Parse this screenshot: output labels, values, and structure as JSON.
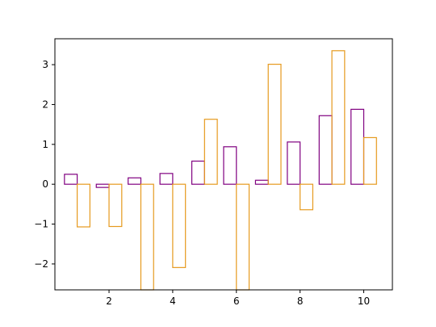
{
  "chart_data": {
    "type": "bar",
    "title": "",
    "xlabel": "",
    "ylabel": "",
    "xlim": [
      0.3,
      10.9
    ],
    "ylim": [
      -2.65,
      3.65
    ],
    "bar_style": "outline",
    "x": [
      1,
      2,
      3,
      4,
      5,
      6,
      7,
      8,
      9,
      10
    ],
    "series": [
      {
        "color": "#800080",
        "values": [
          0.25,
          -0.08,
          0.16,
          0.27,
          0.58,
          0.94,
          0.1,
          1.06,
          1.72,
          1.88
        ]
      },
      {
        "color": "#E69A1E",
        "values": [
          -1.07,
          -1.06,
          -2.65,
          -2.09,
          1.63,
          -2.65,
          3.01,
          -0.64,
          3.35,
          1.17
        ]
      }
    ],
    "xticks": [
      2,
      4,
      6,
      8,
      10
    ],
    "xtick_labels": [
      "2",
      "4",
      "6",
      "8",
      "10"
    ],
    "yticks": [
      -2,
      -1,
      0,
      1,
      2,
      3
    ],
    "ytick_labels": [
      "−2",
      "−1",
      "0",
      "1",
      "2",
      "3"
    ],
    "grid": false,
    "legend": "none"
  }
}
